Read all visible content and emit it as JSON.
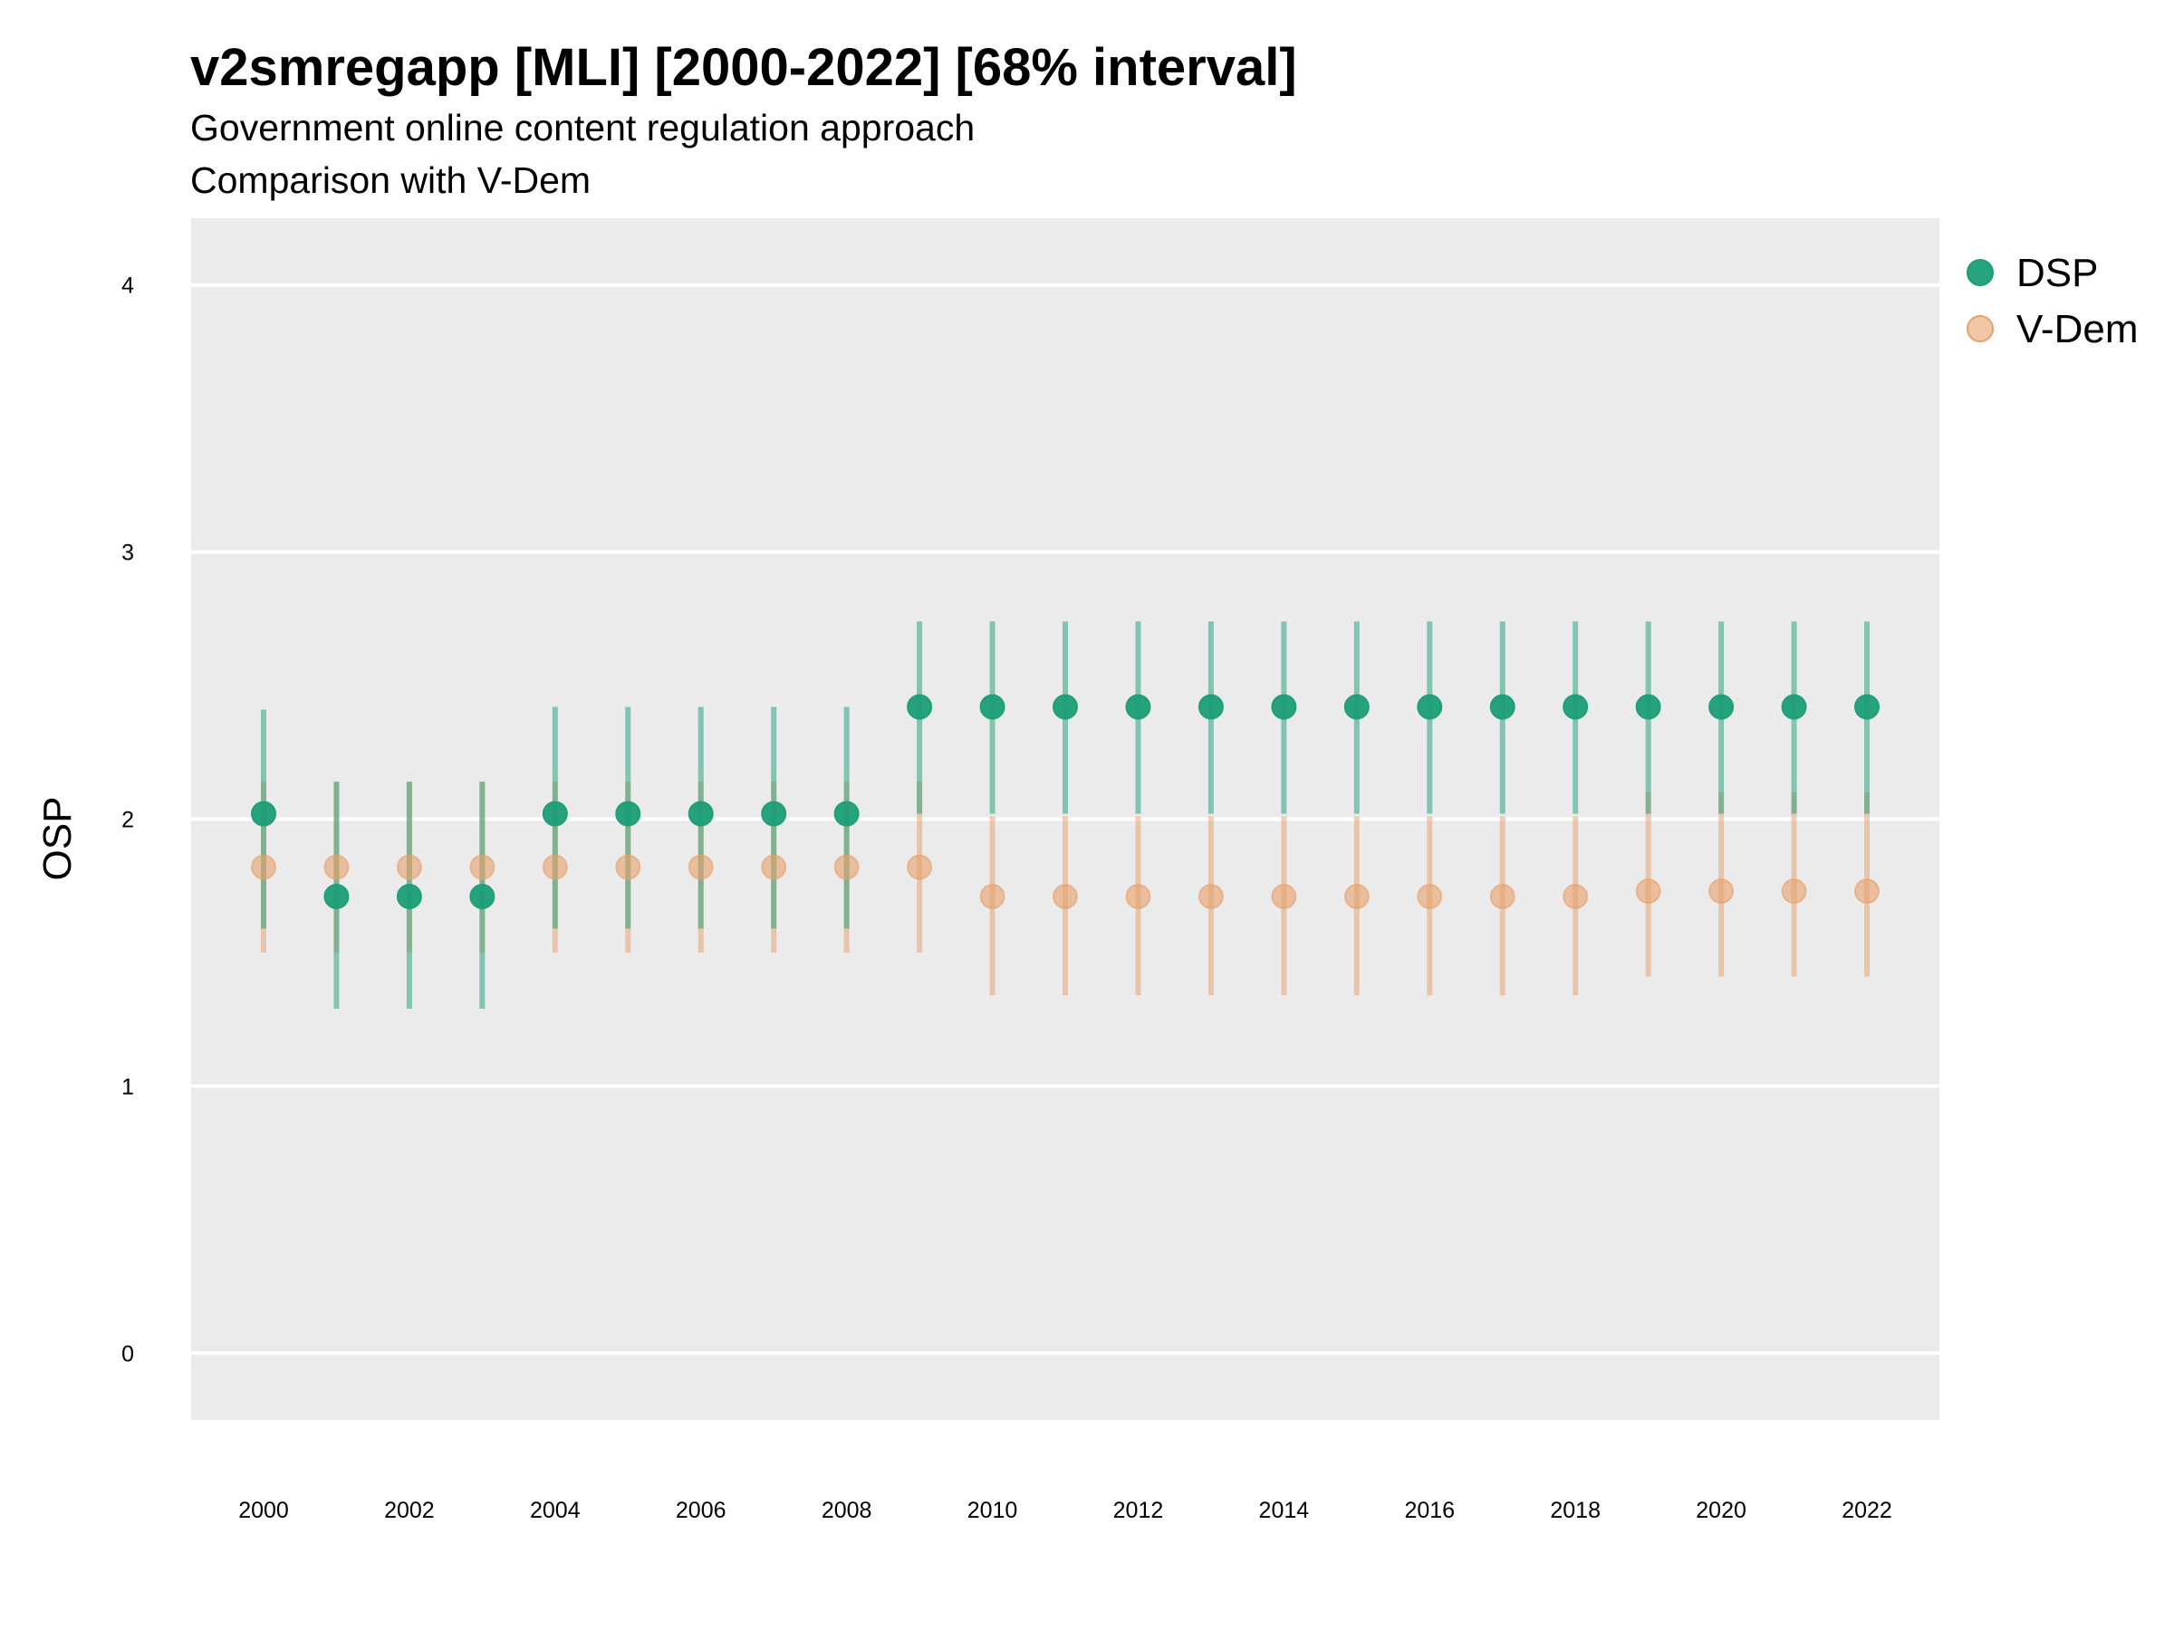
{
  "chart_data": {
    "type": "scatter",
    "title": "v2smregapp [MLI] [2000-2022] [68% interval]",
    "subtitle": [
      "Government online content regulation approach",
      "Comparison with V-Dem"
    ],
    "ylabel": "OSP",
    "xlabel": "",
    "ylim": [
      -0.25,
      4.25
    ],
    "yticks": [
      0,
      1,
      2,
      3,
      4
    ],
    "xticks": [
      2000,
      2002,
      2004,
      2006,
      2008,
      2010,
      2012,
      2014,
      2016,
      2018,
      2020,
      2022
    ],
    "x": [
      2000,
      2001,
      2002,
      2003,
      2004,
      2005,
      2006,
      2007,
      2008,
      2009,
      2010,
      2011,
      2012,
      2013,
      2014,
      2015,
      2016,
      2017,
      2018,
      2019,
      2020,
      2021,
      2022
    ],
    "grid": true,
    "legend_position": "right",
    "series": [
      {
        "name": "DSP",
        "color": "#1b9e77",
        "values": [
          2.02,
          1.71,
          1.71,
          1.71,
          2.02,
          2.02,
          2.02,
          2.02,
          2.02,
          2.42,
          2.42,
          2.42,
          2.42,
          2.42,
          2.42,
          2.42,
          2.42,
          2.42,
          2.42,
          2.42,
          2.42,
          2.42,
          2.42
        ],
        "lower": [
          1.59,
          1.29,
          1.29,
          1.29,
          1.59,
          1.59,
          1.59,
          1.59,
          1.59,
          2.02,
          2.02,
          2.02,
          2.02,
          2.02,
          2.02,
          2.02,
          2.02,
          2.02,
          2.02,
          2.02,
          2.02,
          2.02,
          2.02
        ],
        "upper": [
          2.41,
          2.14,
          2.14,
          2.14,
          2.42,
          2.42,
          2.42,
          2.42,
          2.42,
          2.74,
          2.74,
          2.74,
          2.74,
          2.74,
          2.74,
          2.74,
          2.74,
          2.74,
          2.74,
          2.74,
          2.74,
          2.74,
          2.74
        ]
      },
      {
        "name": "V-Dem",
        "color": "#e6a06a",
        "values": [
          1.82,
          1.82,
          1.82,
          1.82,
          1.82,
          1.82,
          1.82,
          1.82,
          1.82,
          1.82,
          1.71,
          1.71,
          1.71,
          1.71,
          1.71,
          1.71,
          1.71,
          1.71,
          1.71,
          1.73,
          1.73,
          1.73,
          1.73
        ],
        "lower": [
          1.5,
          1.5,
          1.5,
          1.5,
          1.5,
          1.5,
          1.5,
          1.5,
          1.5,
          1.5,
          1.34,
          1.34,
          1.34,
          1.34,
          1.34,
          1.34,
          1.34,
          1.34,
          1.34,
          1.41,
          1.41,
          1.41,
          1.41
        ],
        "upper": [
          2.14,
          2.14,
          2.14,
          2.14,
          2.14,
          2.14,
          2.14,
          2.14,
          2.14,
          2.14,
          2.01,
          2.01,
          2.01,
          2.01,
          2.01,
          2.01,
          2.01,
          2.01,
          2.01,
          2.1,
          2.1,
          2.1,
          2.1
        ]
      }
    ]
  }
}
